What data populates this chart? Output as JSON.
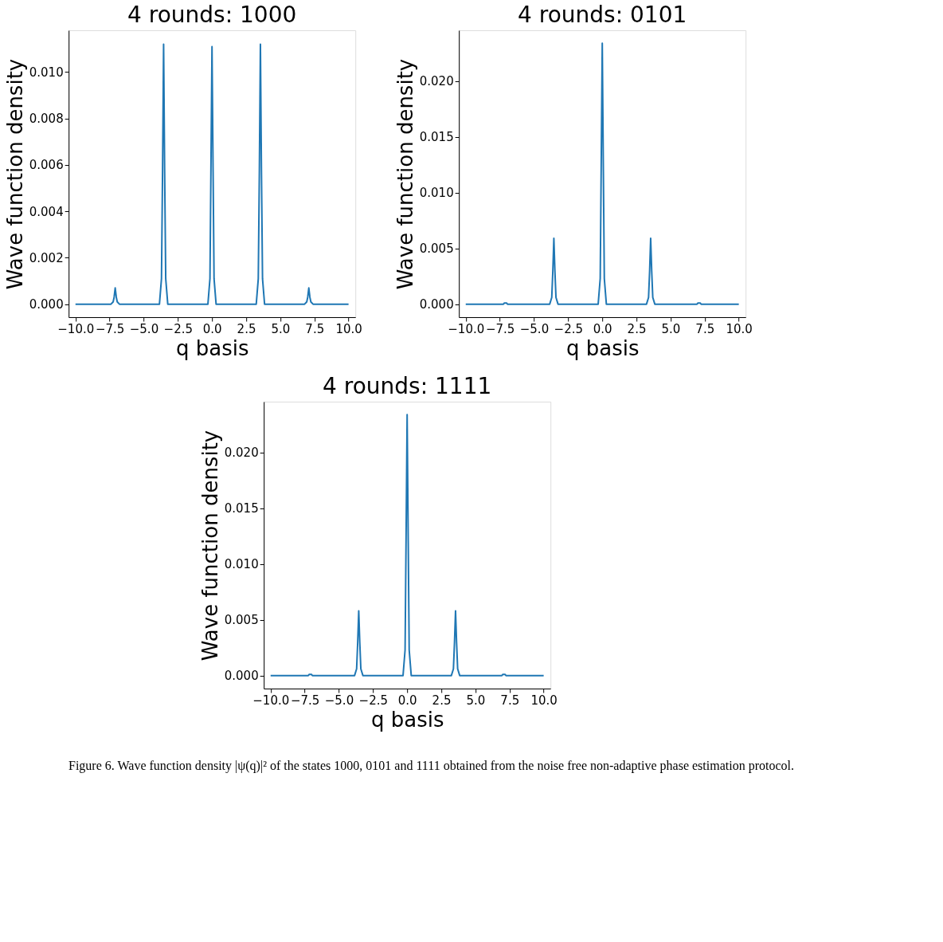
{
  "chart_data": [
    {
      "type": "line",
      "title": "4 rounds: 1000",
      "xlabel": "q basis",
      "ylabel": "Wave function density",
      "grid": false,
      "marker": "none",
      "line_style": "solid",
      "xlim": [
        -10.5,
        10.5
      ],
      "ylim": [
        -0.00056,
        0.0118
      ],
      "xticks": [
        {
          "value": -10,
          "label": "−10.0"
        },
        {
          "value": -7.5,
          "label": "−7.5"
        },
        {
          "value": -5,
          "label": "−5.0"
        },
        {
          "value": -2.5,
          "label": "−2.5"
        },
        {
          "value": 0,
          "label": "0.0"
        },
        {
          "value": 2.5,
          "label": "2.5"
        },
        {
          "value": 5,
          "label": "5.0"
        },
        {
          "value": 7.5,
          "label": "7.5"
        },
        {
          "value": 10,
          "label": "10.0"
        }
      ],
      "yticks": [
        {
          "value": 0,
          "label": "0.000"
        },
        {
          "value": 0.002,
          "label": "0.002"
        },
        {
          "value": 0.004,
          "label": "0.004"
        },
        {
          "value": 0.006,
          "label": "0.006"
        },
        {
          "value": 0.008,
          "label": "0.008"
        },
        {
          "value": 0.01,
          "label": "0.010"
        }
      ],
      "series": [
        {
          "color": "#1f77b4",
          "x": [
            -10,
            -7.4,
            -7.24,
            -7.17,
            -7.09,
            -7.01,
            -6.94,
            -6.78,
            -3.85,
            -3.7,
            -3.62,
            -3.545,
            -3.47,
            -3.39,
            -3.24,
            -0.3,
            -0.15,
            -0.08,
            0,
            0.08,
            0.15,
            0.3,
            3.24,
            3.39,
            3.47,
            3.545,
            3.62,
            3.7,
            3.85,
            6.78,
            6.94,
            7.01,
            7.09,
            7.17,
            7.24,
            7.4,
            10
          ],
          "values": [
            0,
            0,
            0.0001,
            0.0003,
            0.0007,
            0.0003,
            0.0001,
            0,
            0,
            0.0011,
            0.0058,
            0.0112,
            0.0058,
            0.0011,
            0,
            0,
            0.0011,
            0.0057,
            0.0111,
            0.0057,
            0.0011,
            0,
            0,
            0.0011,
            0.0058,
            0.0112,
            0.0058,
            0.0011,
            0,
            0,
            0.0001,
            0.0003,
            0.0007,
            0.0003,
            0.0001,
            0,
            0
          ]
        }
      ]
    },
    {
      "type": "line",
      "title": "4 rounds: 0101",
      "xlabel": "q basis",
      "ylabel": "Wave function density",
      "grid": false,
      "marker": "none",
      "line_style": "solid",
      "xlim": [
        -10.5,
        10.5
      ],
      "ylim": [
        -0.00117,
        0.02457
      ],
      "xticks": [
        {
          "value": -10,
          "label": "−10.0"
        },
        {
          "value": -7.5,
          "label": "−7.5"
        },
        {
          "value": -5,
          "label": "−5.0"
        },
        {
          "value": -2.5,
          "label": "−2.5"
        },
        {
          "value": 0,
          "label": "0.0"
        },
        {
          "value": 2.5,
          "label": "2.5"
        },
        {
          "value": 5,
          "label": "5.0"
        },
        {
          "value": 7.5,
          "label": "7.5"
        },
        {
          "value": 10,
          "label": "10.0"
        }
      ],
      "yticks": [
        {
          "value": 0,
          "label": "0.000"
        },
        {
          "value": 0.005,
          "label": "0.005"
        },
        {
          "value": 0.01,
          "label": "0.010"
        },
        {
          "value": 0.015,
          "label": "0.015"
        },
        {
          "value": 0.02,
          "label": "0.020"
        }
      ],
      "series": [
        {
          "color": "#1f77b4",
          "x": [
            -10,
            -7.4,
            -7.24,
            -7.17,
            -7.09,
            -7.01,
            -6.94,
            -6.78,
            -3.85,
            -3.7,
            -3.62,
            -3.545,
            -3.47,
            -3.39,
            -3.24,
            -0.3,
            -0.15,
            -0.08,
            0,
            0.08,
            0.15,
            0.3,
            3.24,
            3.39,
            3.47,
            3.545,
            3.62,
            3.7,
            3.85,
            6.78,
            6.94,
            7.01,
            7.09,
            7.17,
            7.24,
            7.4,
            10
          ],
          "values": [
            0,
            0,
            0,
            0.0001,
            0.0001,
            0.0001,
            0,
            0,
            0,
            0.0006,
            0.003,
            0.0059,
            0.003,
            0.0006,
            0,
            0,
            0.0023,
            0.012,
            0.0234,
            0.012,
            0.0023,
            0,
            0,
            0.0006,
            0.003,
            0.0059,
            0.003,
            0.0006,
            0,
            0,
            0,
            0.0001,
            0.0001,
            0.0001,
            0,
            0,
            0
          ]
        }
      ]
    },
    {
      "type": "line",
      "title": "4 rounds: 1111",
      "xlabel": "q basis",
      "ylabel": "Wave function density",
      "grid": false,
      "marker": "none",
      "line_style": "solid",
      "xlim": [
        -10.5,
        10.5
      ],
      "ylim": [
        -0.00117,
        0.02457
      ],
      "xticks": [
        {
          "value": -10,
          "label": "−10.0"
        },
        {
          "value": -7.5,
          "label": "−7.5"
        },
        {
          "value": -5,
          "label": "−5.0"
        },
        {
          "value": -2.5,
          "label": "−2.5"
        },
        {
          "value": 0,
          "label": "0.0"
        },
        {
          "value": 2.5,
          "label": "2.5"
        },
        {
          "value": 5,
          "label": "5.0"
        },
        {
          "value": 7.5,
          "label": "7.5"
        },
        {
          "value": 10,
          "label": "10.0"
        }
      ],
      "yticks": [
        {
          "value": 0,
          "label": "0.000"
        },
        {
          "value": 0.005,
          "label": "0.005"
        },
        {
          "value": 0.01,
          "label": "0.010"
        },
        {
          "value": 0.015,
          "label": "0.015"
        },
        {
          "value": 0.02,
          "label": "0.020"
        }
      ],
      "annotations": [
        "Figure 6. Wave function density |ψ(q)|² of the states 1000, 0101 and 1111 obtained from the noise free non-adaptive phase estimation protocol."
      ],
      "series": [
        {
          "color": "#1f77b4",
          "x": [
            -10,
            -7.4,
            -7.24,
            -7.17,
            -7.09,
            -7.01,
            -6.94,
            -6.78,
            -3.85,
            -3.7,
            -3.62,
            -3.545,
            -3.47,
            -3.39,
            -3.24,
            -0.3,
            -0.15,
            -0.08,
            0,
            0.08,
            0.15,
            0.3,
            3.24,
            3.39,
            3.47,
            3.545,
            3.62,
            3.7,
            3.85,
            6.78,
            6.94,
            7.01,
            7.09,
            7.17,
            7.24,
            7.4,
            10
          ],
          "values": [
            0,
            0,
            0,
            0.0001,
            0.0001,
            0.0001,
            0,
            0,
            0,
            0.0006,
            0.003,
            0.0058,
            0.003,
            0.0006,
            0,
            0,
            0.0023,
            0.012,
            0.0234,
            0.012,
            0.0023,
            0,
            0,
            0.0006,
            0.003,
            0.0058,
            0.003,
            0.0006,
            0,
            0,
            0,
            0.0001,
            0.0001,
            0.0001,
            0,
            0,
            0
          ]
        }
      ]
    }
  ]
}
